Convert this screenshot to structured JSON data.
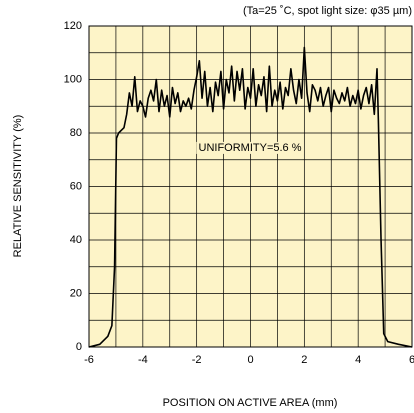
{
  "chart_data": {
    "type": "line",
    "annotation_top": "(Ta=25 ˚C, spot light size: φ35 µm)",
    "annotation": "UNIFORMITY=5.6 %",
    "x_label": "POSITION ON ACTIVE AREA (mm)",
    "y_label": "RELATIVE SENSITIVITY (%)",
    "xlim": [
      -6,
      6
    ],
    "xticks": [
      -6,
      -4,
      -2,
      0,
      2,
      4,
      6
    ],
    "ylim": [
      0,
      120
    ],
    "yticks": [
      0,
      20,
      40,
      60,
      80,
      100,
      120
    ],
    "grid": true,
    "background": "#fdf4c8",
    "series": [
      {
        "color": "#000000",
        "x": [
          -6,
          -5.6,
          -5.3,
          -5.15,
          -5.05,
          -4.98,
          -4.9,
          -4.8,
          -4.7,
          -4.6,
          -4.5,
          -4.4,
          -4.3,
          -4.2,
          -4.1,
          -4.0,
          -3.9,
          -3.8,
          -3.7,
          -3.6,
          -3.5,
          -3.4,
          -3.3,
          -3.2,
          -3.1,
          -3.0,
          -2.9,
          -2.8,
          -2.7,
          -2.6,
          -2.5,
          -2.4,
          -2.3,
          -2.2,
          -2.1,
          -2.0,
          -1.9,
          -1.8,
          -1.7,
          -1.6,
          -1.5,
          -1.4,
          -1.3,
          -1.2,
          -1.1,
          -1.0,
          -0.9,
          -0.8,
          -0.7,
          -0.6,
          -0.5,
          -0.4,
          -0.3,
          -0.2,
          -0.1,
          0,
          0.1,
          0.2,
          0.3,
          0.4,
          0.5,
          0.6,
          0.7,
          0.8,
          0.9,
          1.0,
          1.1,
          1.2,
          1.3,
          1.4,
          1.5,
          1.6,
          1.7,
          1.8,
          1.9,
          2.0,
          2.1,
          2.2,
          2.3,
          2.4,
          2.5,
          2.6,
          2.7,
          2.8,
          2.9,
          3.0,
          3.1,
          3.2,
          3.3,
          3.4,
          3.5,
          3.6,
          3.7,
          3.8,
          3.9,
          4.0,
          4.1,
          4.2,
          4.3,
          4.4,
          4.5,
          4.6,
          4.7,
          4.75,
          4.85,
          4.95,
          5.1,
          5.5,
          6
        ],
        "values": [
          0,
          1,
          4,
          8,
          30,
          78,
          80,
          81,
          82,
          87,
          95,
          90,
          101,
          88,
          92,
          90,
          86,
          93,
          96,
          92,
          100,
          88,
          96,
          90,
          94,
          86,
          97,
          91,
          95,
          88,
          92,
          90,
          93,
          89,
          96,
          101,
          107,
          93,
          103,
          90,
          97,
          88,
          99,
          94,
          103,
          89,
          100,
          95,
          105,
          92,
          103,
          96,
          104,
          89,
          97,
          93,
          104,
          90,
          98,
          94,
          101,
          88,
          105,
          90,
          96,
          92,
          99,
          89,
          97,
          94,
          104,
          96,
          91,
          100,
          93,
          112,
          95,
          88,
          98,
          96,
          92,
          97,
          90,
          94,
          97,
          88,
          96,
          93,
          91,
          95,
          92,
          97,
          90,
          94,
          91,
          96,
          89,
          94,
          97,
          91,
          98,
          87,
          104,
          85,
          40,
          5,
          2,
          1,
          0
        ]
      }
    ]
  }
}
